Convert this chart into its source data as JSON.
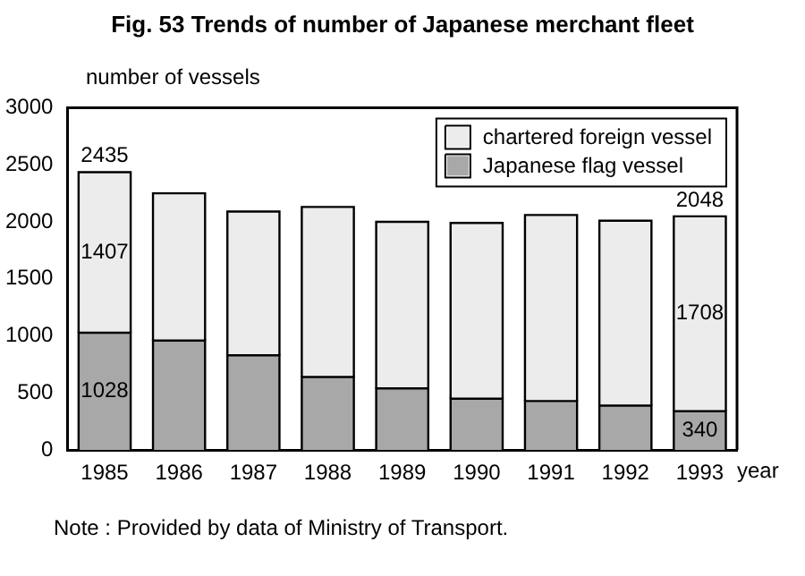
{
  "chart_data": {
    "type": "bar",
    "title": "Fig. 53 Trends of number of Japanese merchant fleet",
    "ylabel": "number of vessels",
    "xlabel": "year",
    "annotations": [
      "Note : Provided by data of Ministry of Transport."
    ],
    "categories": [
      "1985",
      "1986",
      "1987",
      "1988",
      "1989",
      "1990",
      "1991",
      "1992",
      "1993"
    ],
    "stacked": true,
    "series": [
      {
        "name": "Japanese flag vessel",
        "color": "#a8a8a8",
        "values": [
          1028,
          960,
          830,
          640,
          540,
          450,
          430,
          390,
          340
        ],
        "value_labels": [
          "1028",
          null,
          null,
          null,
          null,
          null,
          null,
          null,
          "340"
        ]
      },
      {
        "name": "chartered foreign vessel",
        "color": "#ececec",
        "values": [
          1407,
          1290,
          1260,
          1490,
          1460,
          1540,
          1630,
          1620,
          1708
        ],
        "value_labels": [
          "1407",
          null,
          null,
          null,
          null,
          null,
          null,
          null,
          "1708"
        ]
      }
    ],
    "totals": [
      "2435",
      null,
      null,
      null,
      null,
      null,
      null,
      null,
      "2048"
    ],
    "ylim": [
      0,
      3000
    ],
    "yticks": [
      0,
      500,
      1000,
      1500,
      2000,
      2500,
      3000
    ],
    "grid": false,
    "legend": "top right"
  }
}
